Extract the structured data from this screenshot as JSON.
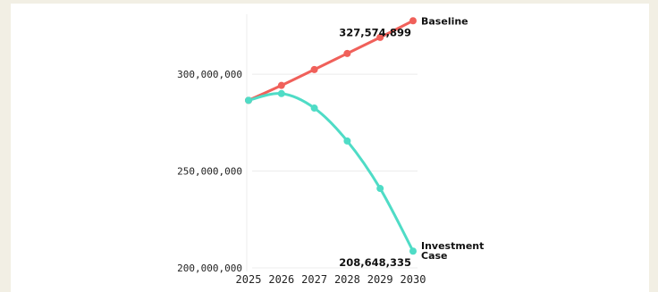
{
  "chart_data": {
    "type": "line",
    "title": "",
    "xlabel": "",
    "ylabel": "",
    "x": [
      2025,
      2026,
      2027,
      2028,
      2029,
      2030
    ],
    "ylim": [
      200000000,
      330000000
    ],
    "yticks": [
      200000000,
      250000000,
      300000000
    ],
    "ytick_labels": [
      "200,000,000",
      "250,000,000",
      "300,000,000"
    ],
    "xtick_labels": [
      "2025",
      "2026",
      "2027",
      "2028",
      "2029",
      "2030"
    ],
    "grid": true,
    "series": [
      {
        "name": "Baseline",
        "label_lines": [
          "Baseline"
        ],
        "color": "#f0605a",
        "values": [
          286500000,
          294200000,
          302400000,
          310700000,
          319000000,
          327574899
        ],
        "end_value_label": "327,574,899"
      },
      {
        "name": "Investment Case",
        "label_lines": [
          "Investment",
          "Case"
        ],
        "color": "#4fdcc6",
        "values": [
          286500000,
          290000000,
          282500000,
          265500000,
          241000000,
          208648335
        ],
        "end_value_label": "208,648,335"
      }
    ]
  }
}
